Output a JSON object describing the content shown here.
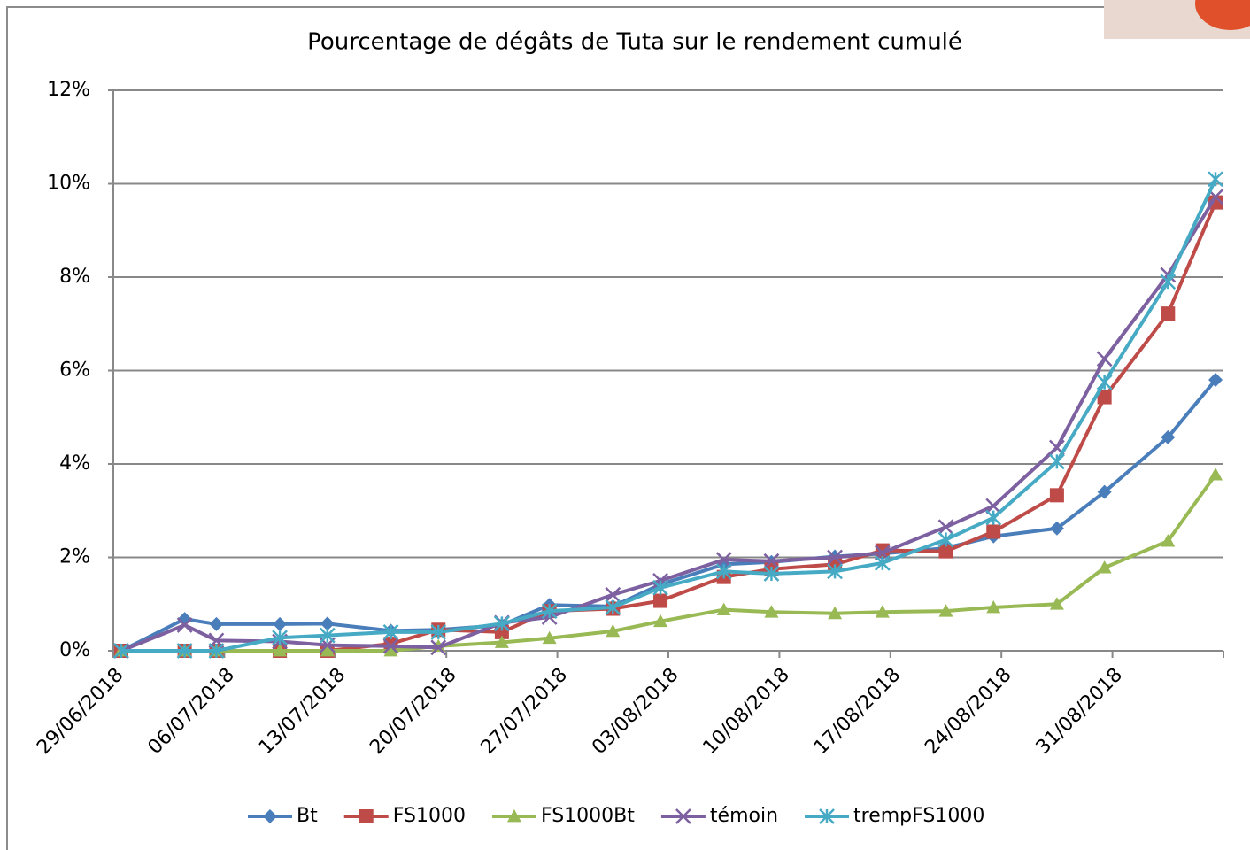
{
  "chart_data": {
    "type": "line",
    "title": "Pourcentage de dégâts de Tuta sur le rendement cumulé",
    "x": [
      "29/06/2018",
      "03/07/2018",
      "05/07/2018",
      "09/07/2018",
      "12/07/2018",
      "16/07/2018",
      "19/07/2018",
      "23/07/2018",
      "26/07/2018",
      "30/07/2018",
      "02/08/2018",
      "06/08/2018",
      "09/08/2018",
      "13/08/2018",
      "16/08/2018",
      "20/08/2018",
      "23/08/2018",
      "27/08/2018",
      "30/08/2018",
      "03/09/2018",
      "06/09/2018"
    ],
    "xlim": [
      "29/06/2018",
      "07/09/2018"
    ],
    "xticks": [
      "29/06/2018",
      "06/07/2018",
      "13/07/2018",
      "20/07/2018",
      "27/07/2018",
      "03/08/2018",
      "10/08/2018",
      "17/08/2018",
      "24/08/2018",
      "31/08/2018"
    ],
    "ylim": [
      0,
      12
    ],
    "yticks": [
      {
        "value": 0,
        "label": "0%"
      },
      {
        "value": 2,
        "label": "2%"
      },
      {
        "value": 4,
        "label": "4%"
      },
      {
        "value": 6,
        "label": "6%"
      },
      {
        "value": 8,
        "label": "8%"
      },
      {
        "value": 10,
        "label": "10%"
      },
      {
        "value": 12,
        "label": "12%"
      }
    ],
    "grid": true,
    "legend": "bottom",
    "series": [
      {
        "name": "Bt",
        "color": "#4a7ebb",
        "marker": "diamond",
        "values": [
          0,
          0.68,
          0.57,
          0.57,
          0.58,
          0.43,
          0.45,
          0.55,
          0.98,
          0.95,
          1.42,
          1.85,
          1.9,
          2.02,
          2.08,
          2.2,
          2.45,
          2.62,
          3.4,
          4.57,
          5.8
        ]
      },
      {
        "name": "FS1000",
        "color": "#be4b48",
        "marker": "square",
        "values": [
          0,
          0,
          0,
          0,
          0,
          0.15,
          0.45,
          0.4,
          0.85,
          0.9,
          1.07,
          1.58,
          1.75,
          1.85,
          2.15,
          2.13,
          2.55,
          3.33,
          5.43,
          7.22,
          9.6
        ]
      },
      {
        "name": "FS1000Bt",
        "color": "#98b954",
        "marker": "triangle",
        "values": [
          0,
          0,
          0,
          0,
          0,
          0,
          0.1,
          0.18,
          0.27,
          0.42,
          0.63,
          0.88,
          0.83,
          0.8,
          0.83,
          0.85,
          0.93,
          1.0,
          1.78,
          2.35,
          3.77
        ]
      },
      {
        "name": "témoin",
        "color": "#7d60a0",
        "marker": "x",
        "values": [
          0,
          0.55,
          0.22,
          0.2,
          0.12,
          0.1,
          0.07,
          0.6,
          0.72,
          1.2,
          1.5,
          1.95,
          1.92,
          2.0,
          2.1,
          2.65,
          3.1,
          4.35,
          6.25,
          8.05,
          9.72
        ]
      },
      {
        "name": "trempFS1000",
        "color": "#46aac5",
        "marker": "star",
        "values": [
          0,
          0,
          0,
          0.28,
          0.33,
          0.4,
          0.4,
          0.58,
          0.85,
          0.93,
          1.35,
          1.7,
          1.65,
          1.7,
          1.88,
          2.38,
          2.85,
          4.05,
          5.75,
          7.9,
          10.1
        ]
      }
    ]
  }
}
